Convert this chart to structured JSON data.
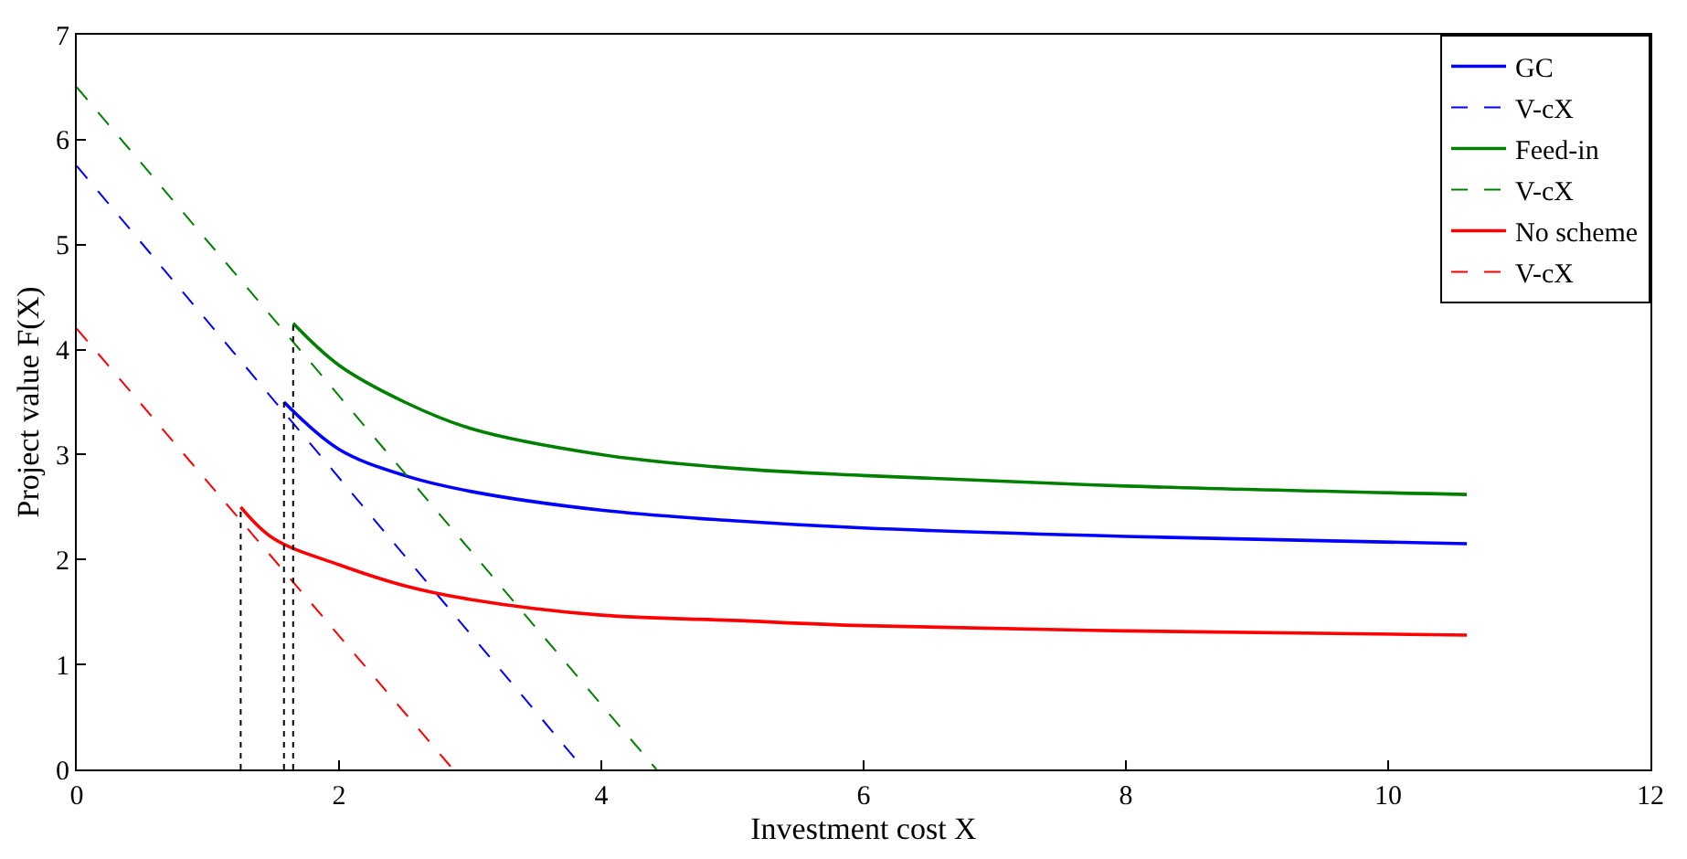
{
  "chart_data": {
    "type": "line",
    "xlabel": "Investment cost X",
    "ylabel": "Project value F(X)",
    "xlim": [
      0,
      12
    ],
    "xticks": [
      0,
      2,
      4,
      6,
      8,
      10,
      12
    ],
    "ylim": [
      0,
      7
    ],
    "yticks": [
      0,
      1,
      2,
      3,
      4,
      5,
      6,
      7
    ],
    "legend": "top right",
    "marker": "none",
    "series": [
      {
        "name": "GC",
        "color": "#0000ff",
        "line_style": "solid",
        "x": [
          1.58,
          2,
          2.5,
          3,
          4,
          5,
          6,
          8,
          10.6
        ],
        "values": [
          3.5,
          3.05,
          2.8,
          2.65,
          2.47,
          2.37,
          2.3,
          2.22,
          2.15
        ]
      },
      {
        "name": "V-cX",
        "color": "#0000ff",
        "line_style": "dashed",
        "x": [
          0,
          3.87
        ],
        "values": [
          5.75,
          0
        ]
      },
      {
        "name": "Feed-in",
        "color": "#008000",
        "line_style": "solid",
        "x": [
          1.65,
          2,
          2.5,
          3,
          4,
          5,
          6,
          8,
          10.6
        ],
        "values": [
          4.25,
          3.85,
          3.5,
          3.25,
          3.0,
          2.87,
          2.8,
          2.7,
          2.62
        ]
      },
      {
        "name": "V-cX",
        "color": "#008000",
        "line_style": "dashed",
        "x": [
          0,
          4.42
        ],
        "values": [
          6.5,
          0
        ]
      },
      {
        "name": "No scheme",
        "color": "#ff0000",
        "line_style": "solid",
        "x": [
          1.25,
          1.5,
          2,
          2.5,
          3,
          4,
          5,
          6,
          8,
          10.6
        ],
        "values": [
          2.5,
          2.2,
          1.95,
          1.75,
          1.62,
          1.47,
          1.42,
          1.37,
          1.32,
          1.28
        ]
      },
      {
        "name": "V-cX",
        "color": "#ff0000",
        "line_style": "dashed",
        "x": [
          0,
          2.87
        ],
        "values": [
          4.2,
          0
        ]
      },
      {
        "color": "#000000",
        "line_style": "dotted",
        "x": [
          1.58,
          1.58
        ],
        "values": [
          0,
          3.5
        ]
      },
      {
        "color": "#000000",
        "line_style": "dotted",
        "x": [
          1.65,
          1.65
        ],
        "values": [
          0,
          4.25
        ]
      },
      {
        "color": "#000000",
        "line_style": "dotted",
        "x": [
          1.25,
          1.25
        ],
        "values": [
          0,
          2.5
        ]
      }
    ]
  }
}
